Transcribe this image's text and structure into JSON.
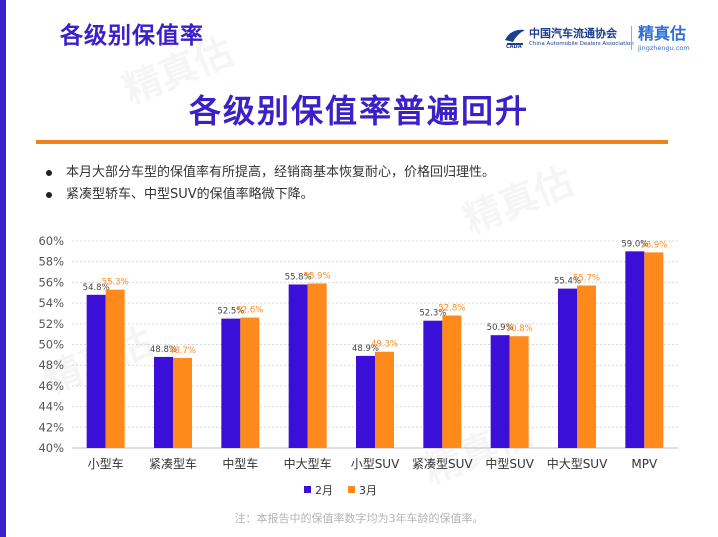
{
  "header": {
    "title": "各级别保值率"
  },
  "logos": {
    "cada_cn": "中国汽车流通协会",
    "cada_en": "China Automobile Dealers Association",
    "jzg_cn": "精真估",
    "jzg_en": "jingzhengu.com"
  },
  "main_title": "各级别保值率普遍回升",
  "bullets": [
    "本月大部分车型的保值率有所提高，经销商基本恢复耐心，价格回归理性。",
    "紧凑型轿车、中型SUV的保值率略微下降。"
  ],
  "watermark": "精真估",
  "chart_data": {
    "type": "bar",
    "categories": [
      "小型车",
      "紧凑型车",
      "中型车",
      "中大型车",
      "小型SUV",
      "紧凑型SUV",
      "中型SUV",
      "中大型SUV",
      "MPV"
    ],
    "series": [
      {
        "name": "2月",
        "color": "#3a0fd8",
        "values": [
          54.8,
          48.8,
          52.5,
          55.8,
          48.9,
          52.3,
          50.9,
          55.4,
          59.0
        ],
        "labels": [
          "54.8%",
          "48.8%",
          "52.5%",
          "55.8%",
          "48.9%",
          "52.3%",
          "50.9%",
          "55.4%",
          "59.0%"
        ]
      },
      {
        "name": "3月",
        "color": "#ff8a1c",
        "values": [
          55.3,
          48.7,
          52.6,
          55.9,
          49.3,
          52.8,
          50.8,
          55.7,
          58.9
        ],
        "labels": [
          "55.3%",
          "48.7%",
          "52.6%",
          "55.9%",
          "49.3%",
          "52.8%",
          "50.8%",
          "55.7%",
          "58.9%"
        ]
      }
    ],
    "ylim": [
      40,
      60
    ],
    "yticks": [
      40,
      42,
      44,
      46,
      48,
      50,
      52,
      54,
      56,
      58,
      60
    ],
    "ytick_labels": [
      "40%",
      "42%",
      "44%",
      "46%",
      "48%",
      "50%",
      "52%",
      "54%",
      "56%",
      "58%",
      "60%"
    ],
    "grid": true,
    "legend_position": "bottom-center"
  },
  "footnote": "注：本报告中的保值率数字均为3年车龄的保值率。"
}
